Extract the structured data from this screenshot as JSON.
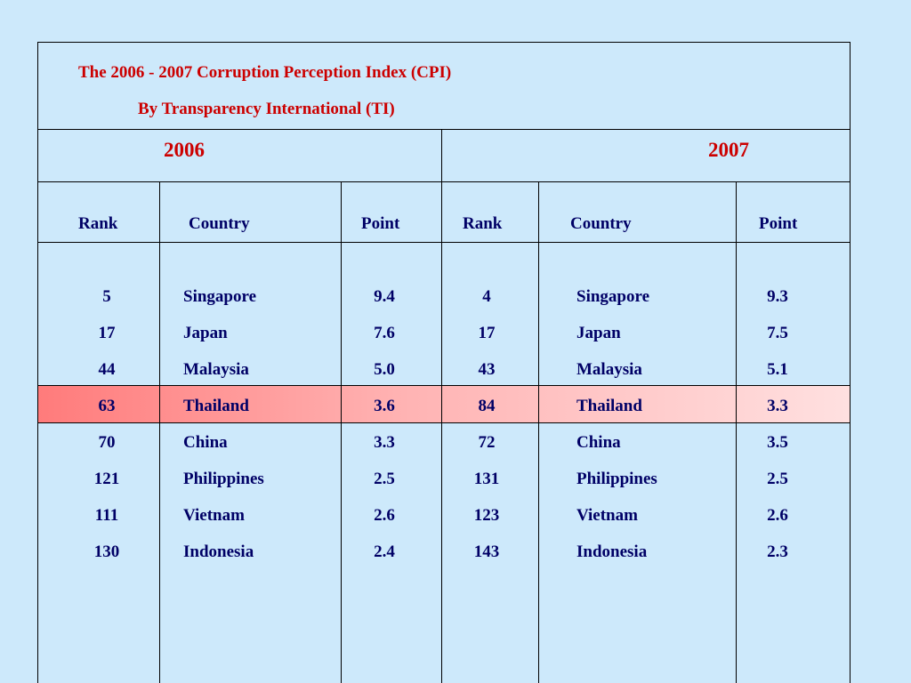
{
  "title": {
    "line1": "The 2006 - 2007 Corruption Perception Index (CPI)",
    "line2": "By Transparency International (TI)"
  },
  "years": [
    "2006",
    "2007"
  ],
  "headers": [
    "Rank",
    "Country",
    "Point",
    "Rank",
    "Country",
    "Point"
  ],
  "highlight_color": "#ff7b7b",
  "rows": [
    {
      "rank2006": "5",
      "country2006": "Singapore",
      "point2006": "9.4",
      "rank2007": "4",
      "country2007": "Singapore",
      "point2007": "9.3"
    },
    {
      "rank2006": "17",
      "country2006": "Japan",
      "point2006": "7.6",
      "rank2007": "17",
      "country2007": "Japan",
      "point2007": "7.5"
    },
    {
      "rank2006": "44",
      "country2006": "Malaysia",
      "point2006": "5.0",
      "rank2007": "43",
      "country2007": "Malaysia",
      "point2007": "5.1"
    },
    {
      "rank2006": "63",
      "country2006": "Thailand",
      "point2006": "3.6",
      "rank2007": "84",
      "country2007": "Thailand",
      "point2007": "3.3"
    },
    {
      "rank2006": "70",
      "country2006": "China",
      "point2006": "3.3",
      "rank2007": "72",
      "country2007": "China",
      "point2007": "3.5"
    },
    {
      "rank2006": "121",
      "country2006": "Philippines",
      "point2006": "2.5",
      "rank2007": "131",
      "country2007": "Philippines",
      "point2007": "2.5"
    },
    {
      "rank2006": "111",
      "country2006": "Vietnam",
      "point2006": "2.6",
      "rank2007": "123",
      "country2007": "Vietnam",
      "point2007": "2.6"
    },
    {
      "rank2006": "130",
      "country2006": "Indonesia",
      "point2006": "2.4",
      "rank2007": "143",
      "country2007": "Indonesia",
      "point2007": "2.3"
    }
  ]
}
